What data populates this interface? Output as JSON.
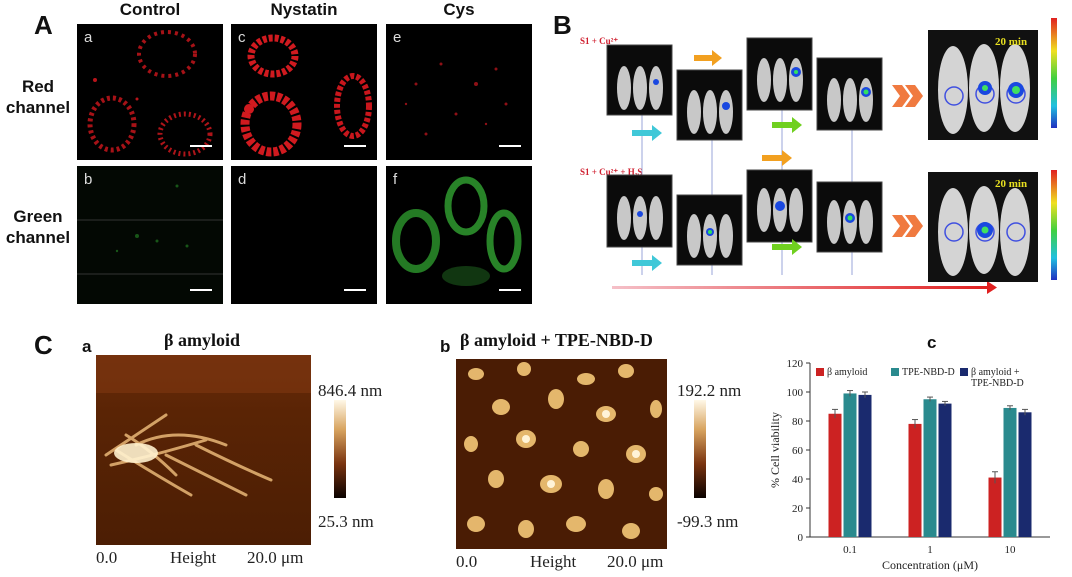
{
  "panelA": {
    "letter": "A",
    "columns": [
      "Control",
      "Nystatin",
      "Cys"
    ],
    "rows": [
      "Red\nchannel",
      "Green\nchannel"
    ],
    "subpanels": [
      "a",
      "b",
      "c",
      "d",
      "e",
      "f"
    ]
  },
  "panelB": {
    "letter": "B",
    "row1_label": "S1 + Cu²⁺",
    "row2_label": "S1 + Cu²⁺ + H₂S",
    "time_label": "20 min"
  },
  "panelC": {
    "letter": "C",
    "a": {
      "label": "a",
      "title": "β amyloid",
      "max": "846.4 nm",
      "min": "25.3 nm",
      "axis_start": "0.0",
      "axis_mid": "Height",
      "axis_end": "20.0 μm"
    },
    "b": {
      "label": "b",
      "title": "β amyloid + TPE-NBD-D",
      "max": "192.2 nm",
      "min": "-99.3 nm",
      "axis_start": "0.0",
      "axis_mid": "Height",
      "axis_end": "20.0 μm"
    },
    "c_label": "c"
  },
  "colors": {
    "red": "#cc2222",
    "teal": "#2a8a8e",
    "navy": "#1a2a6e"
  },
  "chart_data": {
    "type": "bar",
    "categories": [
      "0.1",
      "1",
      "10"
    ],
    "series": [
      {
        "name": "β amyloid",
        "values": [
          85,
          78,
          41
        ],
        "errors": [
          3,
          3,
          4
        ],
        "color": "#cc2222"
      },
      {
        "name": "TPE-NBD-D",
        "values": [
          99,
          95,
          89
        ],
        "errors": [
          2,
          1.5,
          1.5
        ],
        "color": "#2a8a8e"
      },
      {
        "name": "β amyloid + TPE-NBD-D",
        "values": [
          98,
          92,
          86
        ],
        "errors": [
          2,
          1.5,
          2
        ],
        "color": "#1a2a6e"
      }
    ],
    "xlabel": "Concentration (μM)",
    "ylabel": "% Cell viability",
    "ylim": [
      0,
      120
    ],
    "yticks": [
      "0",
      "20",
      "40",
      "60",
      "80",
      "100",
      "120"
    ],
    "legend": "top"
  }
}
